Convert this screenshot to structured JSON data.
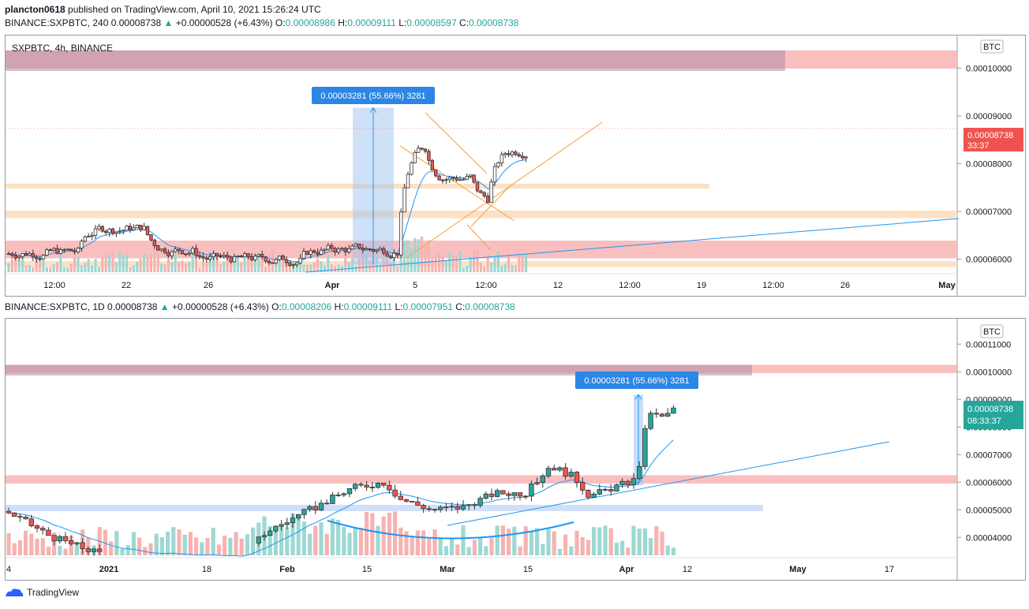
{
  "header": {
    "publisher": "plancton0618",
    "published_text": "published on TradingView.com, April 10, 2021 15:26:24 UTC"
  },
  "charts": [
    {
      "legend": {
        "symbol": "BINANCE:SXPBTC, 240",
        "last": "0.00008738",
        "change": "+0.00000528 (+6.43%)",
        "o_label": "O:",
        "o": "0.00008986",
        "h_label": "H:",
        "h": "0.00009111",
        "l_label": "L:",
        "l": "0.00008597",
        "c_label": "C:",
        "c": "0.00008738"
      },
      "pane_title": "SXPBTC, 4h, BINANCE",
      "currency": "BTC",
      "price_tag": "0.00008738",
      "countdown": "33:37",
      "measure_label": "0.00003281 (55.66%) 3281"
    },
    {
      "legend": {
        "symbol": "BINANCE:SXPBTC, 1D",
        "last": "0.00008738",
        "change": "+0.00000528 (+6.43%)",
        "o_label": "O:",
        "o": "0.00008206",
        "h_label": "H:",
        "h": "0.00009111",
        "l_label": "L:",
        "l": "0.00007951",
        "c_label": "C:",
        "c": "0.00008738"
      },
      "currency": "BTC",
      "price_tag": "0.00008738",
      "countdown": "08:33:37",
      "measure_label": "0.00003281 (55.66%) 3281"
    }
  ],
  "chart_data": [
    {
      "type": "candlestick",
      "symbol": "SXPBTC",
      "interval": "4h",
      "ylim": [
        5.73e-05,
        0.0001055
      ],
      "y_ticks": [
        "0.00010000",
        "0.00009000",
        "0.00008000",
        "0.00007000",
        "0.00006000"
      ],
      "x_ticks": [
        "12:00",
        "22",
        "26",
        "Apr",
        "5",
        "12:00",
        "12",
        "12:00",
        "19",
        "12:00",
        "26",
        "May"
      ],
      "zones": [
        {
          "from": 9.99e-05,
          "to": 0.0001037,
          "color": "#f8b4b4"
        },
        {
          "from": 6.86e-05,
          "to": 7.02e-05,
          "color": "#fbdcbc"
        },
        {
          "from": 7.48e-05,
          "to": 7.58e-05,
          "color": "#fbdcbc"
        },
        {
          "from": 6.02e-05,
          "to": 6.39e-05,
          "color": "#f8b4b4"
        },
        {
          "from": 5.84e-05,
          "to": 5.96e-05,
          "color": "#fbdcbc"
        }
      ],
      "measure": {
        "from": 5.89e-05,
        "to": 9.17e-05,
        "change": "0.00003281 (55.66%) 3281"
      },
      "last_price": 8.738e-05
    },
    {
      "type": "candlestick",
      "symbol": "SXPBTC",
      "interval": "1D",
      "ylim": [
        3.35e-05,
        0.0001175
      ],
      "y_ticks": [
        "0.00011000",
        "0.00010000",
        "0.00009000",
        "0.00008000",
        "0.00007000",
        "0.00006000",
        "0.00005000",
        "0.00004000"
      ],
      "x_ticks": [
        "4",
        "2021",
        "18",
        "Feb",
        "15",
        "Mar",
        "15",
        "Apr",
        "12",
        "May",
        "17"
      ],
      "zones": [
        {
          "from": 9.95e-05,
          "to": 0.0001025,
          "color": "#f8b4b4"
        },
        {
          "from": 5.95e-05,
          "to": 6.25e-05,
          "color": "#f8b4b4"
        },
        {
          "from": 4.95e-05,
          "to": 5.18e-05,
          "color": "#c9daf8"
        }
      ],
      "measure": {
        "from": 5.89e-05,
        "to": 9.17e-05,
        "change": "0.00003281 (55.66%) 3281"
      },
      "last_price": 8.738e-05
    }
  ]
}
